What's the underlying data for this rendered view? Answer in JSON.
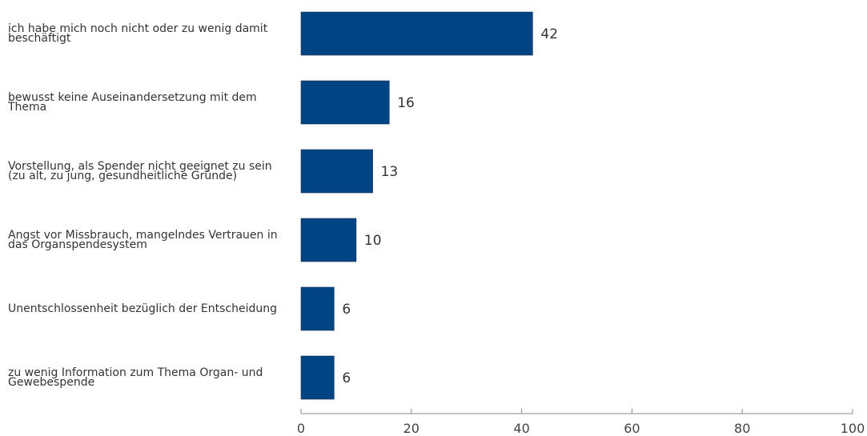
{
  "chart_data": {
    "type": "bar",
    "orientation": "horizontal",
    "categories": [
      "ich habe mich noch nicht oder zu wenig damit beschäftigt",
      "bewusst keine Auseinandersetzung mit dem Thema",
      "Vorstellung, als Spender nicht geeignet zu sein (zu alt, zu jung, gesundheitliche Gründe)",
      "Angst vor Missbrauch, mangelndes Vertrauen in das Organspendesystem",
      "Unentschlossenheit bezüglich der Entscheidung",
      "zu wenig Information zum Thema Organ- und Gewebespende"
    ],
    "values": [
      42,
      16,
      13,
      10,
      6,
      6
    ],
    "xlim": [
      0,
      100
    ],
    "xticks": [
      0,
      20,
      40,
      60,
      80,
      100
    ],
    "bar_color": "#004483",
    "grid": false,
    "data_labels": true
  }
}
